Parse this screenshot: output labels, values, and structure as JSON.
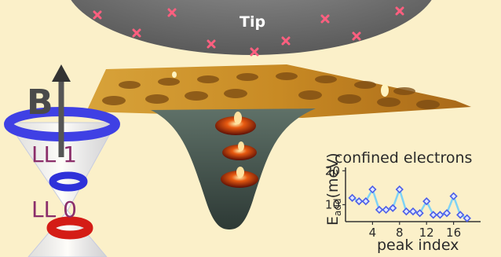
{
  "tip": {
    "label": "Tip"
  },
  "field": {
    "label": "B"
  },
  "landau_levels": [
    {
      "label": "LL 1"
    },
    {
      "label": "LL 0"
    }
  ],
  "chart_data": {
    "type": "line",
    "title": "confined electrons",
    "xlabel": "peak index",
    "ylabel": "E",
    "ylabel_sub": "add",
    "ylabel_unit": "(meV)",
    "xticks": [
      4,
      8,
      12,
      16
    ],
    "yticks": [
      10,
      20
    ],
    "xlim": [
      0,
      20
    ],
    "ylim": [
      5,
      21
    ],
    "x": [
      1,
      2,
      3,
      4,
      5,
      6,
      7,
      8,
      9,
      10,
      11,
      12,
      13,
      14,
      15,
      16,
      17,
      18
    ],
    "values": [
      12,
      11,
      11,
      14.5,
      8.5,
      8.5,
      9,
      14.5,
      8,
      8,
      7.5,
      11,
      7,
      7,
      7.5,
      12.5,
      7,
      6
    ],
    "line_color": "#7fd3f5",
    "marker_color": "#4c5ee8"
  }
}
